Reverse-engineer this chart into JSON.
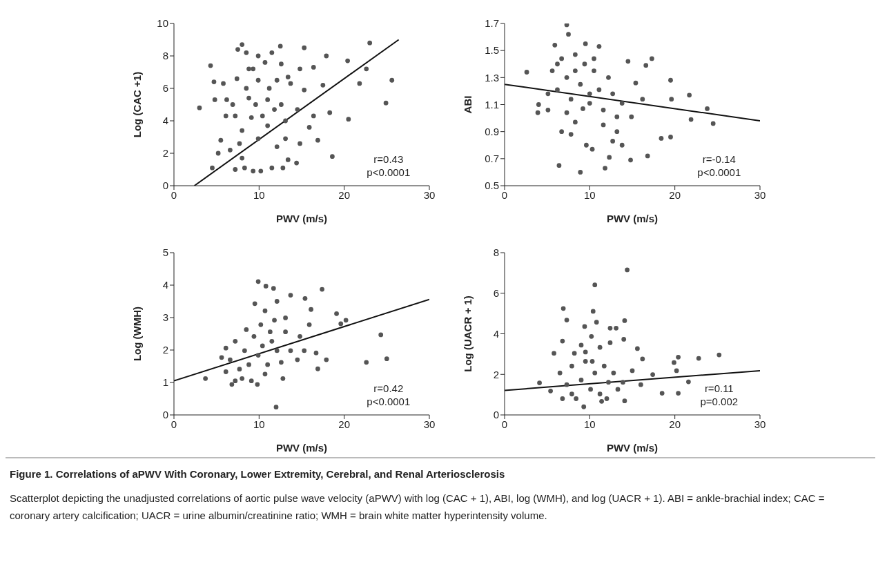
{
  "chart_data": [
    {
      "type": "scatter",
      "xlabel": "PWV (m/s)",
      "ylabel": "Log (CAC +1)",
      "xlim": [
        0,
        30
      ],
      "xticks": [
        0,
        10,
        20,
        30
      ],
      "ylim": [
        0,
        10
      ],
      "yticks": [
        0,
        2,
        4,
        6,
        8,
        10
      ],
      "grid": false,
      "marker": "circle",
      "annotations": [
        "r=0.43",
        "p<0.0001"
      ],
      "series": [
        {
          "color": "#555555",
          "x": [
            3.0,
            4.3,
            4.7,
            4.8,
            5.2,
            5.5,
            5.8,
            4.5,
            7.5,
            8.0,
            12.5,
            23.0,
            25.6,
            24.9,
            21.8,
            22.6,
            20.5,
            18.6,
            16.9,
            20.4,
            17.9,
            15.3,
            7.2,
            8.0,
            8.8,
            9.3,
            9.9,
            10.7,
            11.5,
            12.1,
            12.6,
            13.1,
            13.7,
            14.8,
            15.3,
            8.3,
            7.2,
            9.3,
            10.2,
            11.5,
            12.8,
            6.6,
            8.0,
            9.9,
            11.0,
            12.1,
            13.1,
            14.4,
            7.7,
            6.9,
            8.5,
            9.6,
            10.4,
            11.0,
            11.8,
            9.1,
            7.4,
            8.8,
            9.9,
            11.2,
            13.4,
            14.5,
            15.9,
            16.4,
            17.5,
            16.4,
            6.1,
            6.2,
            8.5,
            12.6,
            18.3,
            14.8,
            13.4
          ],
          "values": [
            4.8,
            7.4,
            6.4,
            5.3,
            2.0,
            2.8,
            6.3,
            1.1,
            8.4,
            8.7,
            8.6,
            8.8,
            6.5,
            5.1,
            6.3,
            7.2,
            4.1,
            1.8,
            2.8,
            7.7,
            8.0,
            8.5,
            4.3,
            3.4,
            5.4,
            7.2,
            8.0,
            7.6,
            8.2,
            6.5,
            5.0,
            4.0,
            6.3,
            7.2,
            5.9,
            1.1,
            1.0,
            0.9,
            0.9,
            1.1,
            1.1,
            2.2,
            1.7,
            2.9,
            3.7,
            2.4,
            2.9,
            1.4,
            2.6,
            5.0,
            6.0,
            5.0,
            4.3,
            5.3,
            4.7,
            4.2,
            6.6,
            7.2,
            6.5,
            6.0,
            6.7,
            4.7,
            3.6,
            4.3,
            6.2,
            7.3,
            4.3,
            5.3,
            8.2,
            7.5,
            4.5,
            2.6,
            1.6
          ]
        },
        {
          "type": "line",
          "marker": "none",
          "color": "#111111",
          "x": [
            2.4,
            26.4
          ],
          "values": [
            0,
            9.0
          ]
        }
      ]
    },
    {
      "type": "scatter",
      "xlabel": "PWV (m/s)",
      "ylabel": "ABI",
      "xlim": [
        0,
        30
      ],
      "xticks": [
        0,
        10,
        20,
        30
      ],
      "ylim": [
        0.5,
        1.7
      ],
      "yticks": [
        0.5,
        0.7,
        0.9,
        1.1,
        1.3,
        1.5,
        1.7
      ],
      "grid": false,
      "marker": "circle",
      "annotations": [
        "r=-0.14",
        "p<0.0001"
      ],
      "series": [
        {
          "color": "#555555",
          "x": [
            2.6,
            3.9,
            4.0,
            5.9,
            6.4,
            7.3,
            7.5,
            9.5,
            8.9,
            11.1,
            11.8,
            12.3,
            9.6,
            10.3,
            14.5,
            14.8,
            16.6,
            17.3,
            16.8,
            18.4,
            19.5,
            19.6,
            19.5,
            21.7,
            21.9,
            23.8,
            24.5,
            5.6,
            6.2,
            6.7,
            7.3,
            7.8,
            8.3,
            8.9,
            7.3,
            8.3,
            9.2,
            10.0,
            10.5,
            11.1,
            11.6,
            12.2,
            12.7,
            13.2,
            13.8,
            6.7,
            7.8,
            10.5,
            8.3,
            6.2,
            5.1,
            5.1,
            9.4,
            10.0,
            11.6,
            13.2,
            14.9,
            15.4,
            16.2,
            12.7,
            13.8
          ],
          "values": [
            1.34,
            1.04,
            1.1,
            1.54,
            0.65,
            1.69,
            1.62,
            1.55,
            0.6,
            1.53,
            0.63,
            0.71,
            0.8,
            0.77,
            1.42,
            0.69,
            1.39,
            1.44,
            0.72,
            0.85,
            0.86,
            1.14,
            1.28,
            1.17,
            0.99,
            1.07,
            0.96,
            1.35,
            1.21,
            1.44,
            1.3,
            1.14,
            1.35,
            1.25,
            1.04,
            0.97,
            1.07,
            1.18,
            1.35,
            1.21,
            1.06,
            1.3,
            1.18,
            1.01,
            1.11,
            0.9,
            0.88,
            1.44,
            1.47,
            1.4,
            1.18,
            1.06,
            1.4,
            1.11,
            0.95,
            0.9,
            1.01,
            1.26,
            1.14,
            0.83,
            0.8
          ]
        },
        {
          "type": "line",
          "marker": "none",
          "color": "#111111",
          "x": [
            0,
            30
          ],
          "values": [
            1.25,
            0.98
          ]
        }
      ]
    },
    {
      "type": "scatter",
      "xlabel": "PWV (m/s)",
      "ylabel": "Log (WMH)",
      "xlim": [
        0,
        30
      ],
      "xticks": [
        0,
        10,
        20,
        30
      ],
      "ylim": [
        0,
        5
      ],
      "yticks": [
        0,
        1,
        2,
        3,
        4,
        5
      ],
      "grid": false,
      "marker": "circle",
      "annotations": [
        "r=0.42",
        "p<0.0001"
      ],
      "series": [
        {
          "color": "#555555",
          "x": [
            3.7,
            9.9,
            10.8,
            11.7,
            12.0,
            17.4,
            24.3,
            25.0,
            22.6,
            19.1,
            19.6,
            20.2,
            16.9,
            17.9,
            16.1,
            15.4,
            13.7,
            12.1,
            10.7,
            9.5,
            6.1,
            6.8,
            9.8,
            12.8,
            6.6,
            7.2,
            7.7,
            8.3,
            8.8,
            9.4,
            9.9,
            10.4,
            11.0,
            11.5,
            12.1,
            12.6,
            8.0,
            9.1,
            8.5,
            10.2,
            11.3,
            13.1,
            13.7,
            14.5,
            14.8,
            15.3,
            15.9,
            16.7,
            13.1,
            6.1,
            5.6,
            7.2,
            10.7,
            11.8
          ],
          "values": [
            1.12,
            4.11,
            3.97,
            3.9,
            0.24,
            3.87,
            2.47,
            1.73,
            1.62,
            3.12,
            2.81,
            2.92,
            1.42,
            1.7,
            3.25,
            3.59,
            3.69,
            3.5,
            3.21,
            3.43,
            2.06,
            0.94,
            0.94,
            1.12,
            1.7,
            2.27,
            1.41,
            1.98,
            1.55,
            2.42,
            1.84,
            2.13,
            1.55,
            2.27,
            1.98,
            1.62,
            1.12,
            1.05,
            2.63,
            2.78,
            2.56,
            2.99,
            1.98,
            1.7,
            2.42,
            1.98,
            2.78,
            1.91,
            2.56,
            1.33,
            1.77,
            1.05,
            1.26,
            2.92
          ]
        },
        {
          "type": "line",
          "marker": "none",
          "color": "#111111",
          "x": [
            0,
            30
          ],
          "values": [
            1.05,
            3.56
          ]
        }
      ]
    },
    {
      "type": "scatter",
      "xlabel": "PWV (m/s)",
      "ylabel": "Log (UACR + 1)",
      "xlim": [
        0,
        30
      ],
      "xticks": [
        0,
        10,
        20,
        30
      ],
      "ylim": [
        0,
        8
      ],
      "yticks": [
        0,
        2,
        4,
        6,
        8
      ],
      "grid": false,
      "marker": "circle",
      "annotations": [
        "r=0.11",
        "p=0.002"
      ],
      "series": [
        {
          "color": "#555555",
          "x": [
            14.4,
            10.6,
            10.4,
            6.9,
            7.3,
            10.8,
            14.1,
            9.4,
            12.4,
            13.1,
            5.8,
            6.8,
            8.2,
            10.2,
            12.4,
            14.0,
            15.6,
            16.2,
            19.9,
            20.4,
            22.8,
            25.2,
            20.2,
            20.4,
            18.5,
            21.6,
            4.1,
            5.4,
            9.3,
            11.4,
            14.1,
            17.4,
            16.0,
            6.5,
            7.3,
            7.9,
            8.4,
            9.0,
            9.5,
            10.1,
            10.6,
            11.2,
            11.7,
            12.2,
            12.8,
            13.3,
            6.8,
            7.9,
            9.5,
            11.2,
            13.9,
            15.0,
            9.0,
            10.3,
            12.0
          ],
          "values": [
            7.15,
            6.41,
            5.11,
            5.25,
            4.68,
            4.57,
            4.65,
            4.36,
            4.28,
            4.28,
            3.04,
            3.64,
            3.04,
            3.87,
            3.56,
            3.73,
            3.27,
            2.76,
            2.58,
            2.85,
            2.79,
            2.96,
            2.18,
            1.07,
            1.07,
            1.63,
            1.58,
            1.18,
            0.4,
            0.67,
            0.69,
            1.99,
            1.49,
            2.07,
            1.49,
            2.41,
            0.8,
            1.72,
            2.64,
            1.26,
            2.07,
            1.03,
            2.41,
            1.61,
            2.07,
            1.26,
            0.8,
            1.03,
            3.1,
            3.33,
            1.61,
            2.18,
            3.44,
            2.64,
            0.8
          ]
        },
        {
          "type": "line",
          "marker": "none",
          "color": "#111111",
          "x": [
            0,
            30
          ],
          "values": [
            1.21,
            2.18
          ]
        }
      ]
    },
    {
      "type": "other",
      "title": "Figure 1. Correlations of aPWV With Coronary, Lower Extremity, Cerebral, and Renal Arteriosclerosis",
      "annotations": [
        "Scatterplot depicting the unadjusted correlations of aortic pulse wave velocity (aPWV) with log (CAC + 1), ABI, log (WMH), and log (UACR + 1). ABI = ankle-brachial index; CAC = coronary artery calcification; UACR = urine albumin/creatinine ratio; WMH = brain white matter hyperintensity volume."
      ]
    }
  ]
}
